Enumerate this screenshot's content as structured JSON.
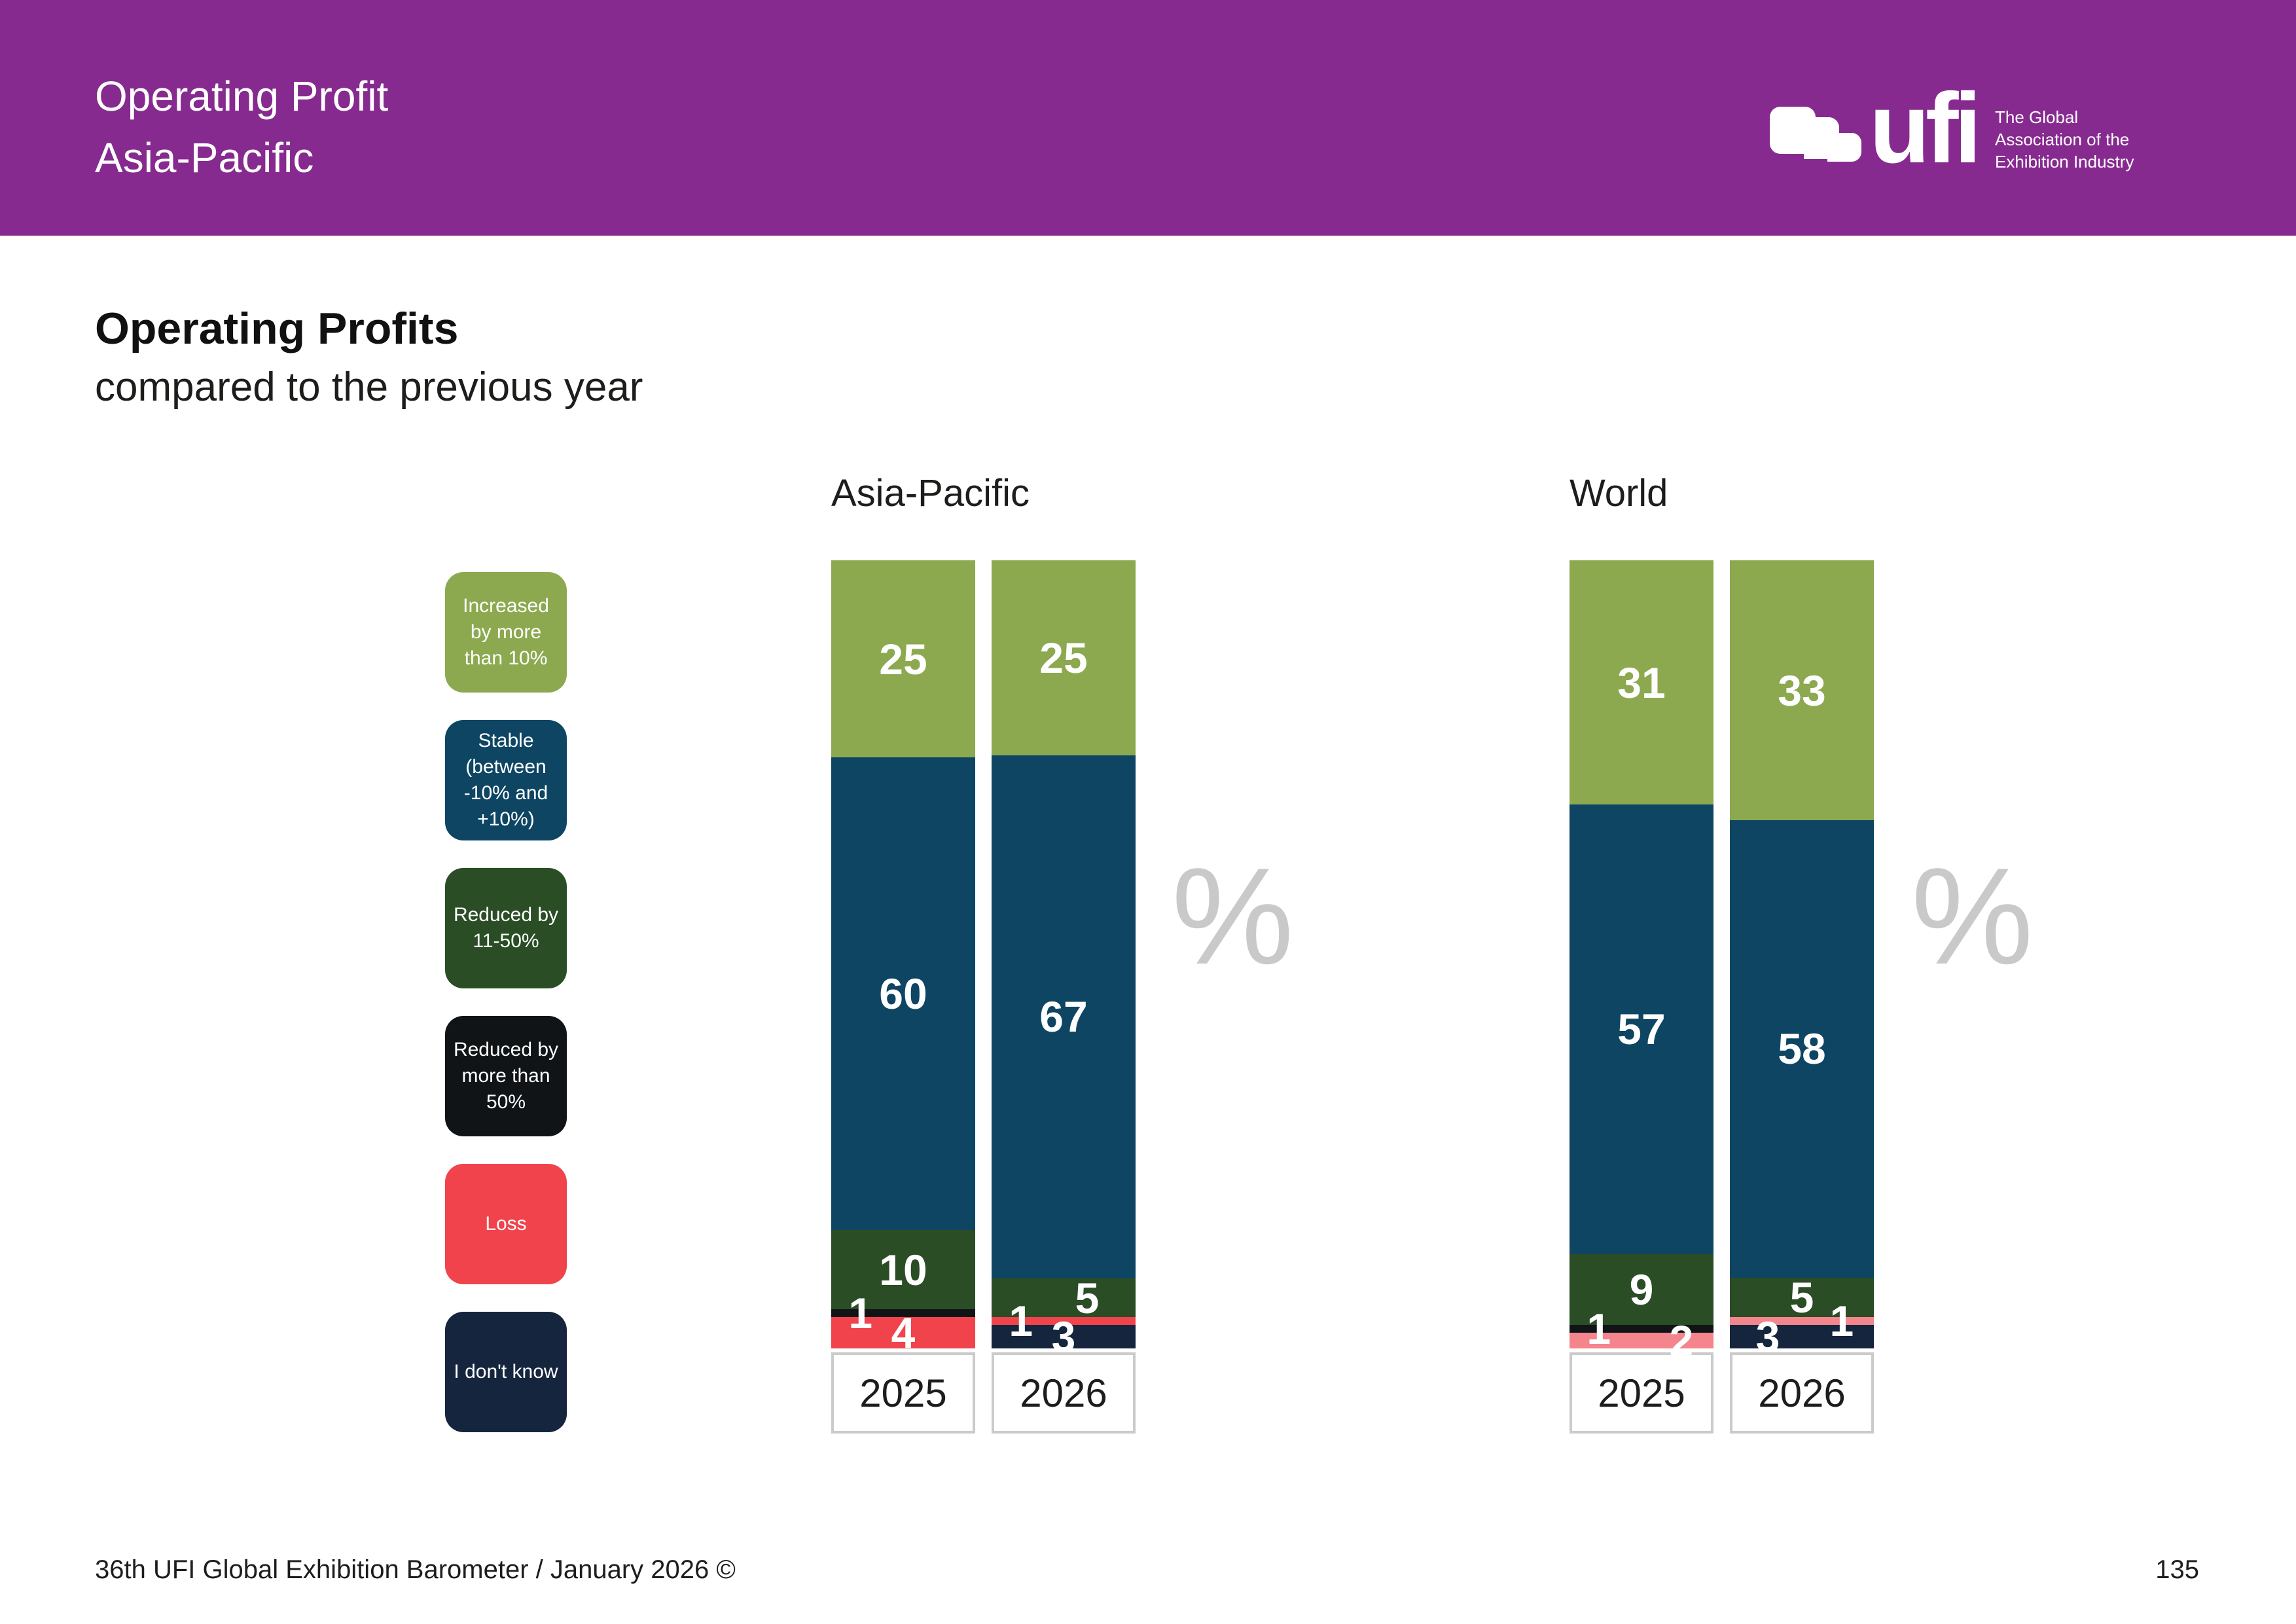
{
  "header": {
    "title_line1": "Operating Profit",
    "title_line2": "Asia-Pacific",
    "background": "#862A90",
    "logo": {
      "brand": "ufi",
      "tagline_lines": [
        "The Global",
        "Association of the",
        "Exhibition Industry"
      ]
    }
  },
  "main": {
    "title": "Operating Profits",
    "subtitle": "compared to the previous year"
  },
  "legend": {
    "items": [
      {
        "label": "Increased by more than 10%",
        "color": "#8CA94F"
      },
      {
        "label": "Stable (between -10% and +10%)",
        "color": "#0D4563"
      },
      {
        "label": "Reduced by 11-50%",
        "color": "#2A4D26"
      },
      {
        "label": "Reduced by more than 50%",
        "color": "#111417"
      },
      {
        "label": "Loss",
        "color": "#F0434B"
      },
      {
        "label": "I don't know",
        "color": "#15253E"
      }
    ]
  },
  "chart_data": {
    "type": "bar",
    "stacked": true,
    "unit": "%",
    "ymax": 100,
    "legend_position": "left",
    "charts": [
      {
        "title": "Asia-Pacific",
        "categories": [
          "2025",
          "2026"
        ],
        "bars": [
          {
            "year": "2025",
            "segments": [
              {
                "name": "Increased by more than 10%",
                "value": 25,
                "color": "#8CA94F",
                "label_pos": "center"
              },
              {
                "name": "Stable (between -10% and +10%)",
                "value": 60,
                "color": "#0D4563",
                "label_pos": "center"
              },
              {
                "name": "Reduced by 11-50%",
                "value": 10,
                "color": "#2A4D26",
                "label_pos": "center"
              },
              {
                "name": "Reduced by more than 50%",
                "value": 1,
                "color": "#111417",
                "label_pos": "left"
              },
              {
                "name": "Loss",
                "value": 4,
                "color": "#F0434B",
                "label_pos": "center"
              }
            ]
          },
          {
            "year": "2026",
            "segments": [
              {
                "name": "Increased by more than 10%",
                "value": 25,
                "color": "#8CA94F",
                "label_pos": "center"
              },
              {
                "name": "Stable (between -10% and +10%)",
                "value": 67,
                "color": "#0D4563",
                "label_pos": "center"
              },
              {
                "name": "Reduced by 11-50%",
                "value": 5,
                "color": "#2A4D26",
                "label_pos": "center-right"
              },
              {
                "name": "Loss",
                "value": 1,
                "color": "#F0434B",
                "label_pos": "left"
              },
              {
                "name": "I don't know",
                "value": 3,
                "color": "#15253E",
                "label_pos": "center"
              }
            ]
          }
        ]
      },
      {
        "title": "World",
        "categories": [
          "2025",
          "2026"
        ],
        "bars": [
          {
            "year": "2025",
            "segments": [
              {
                "name": "Increased by more than 10%",
                "value": 31,
                "color": "#8CA94F",
                "label_pos": "center"
              },
              {
                "name": "Stable (between -10% and +10%)",
                "value": 57,
                "color": "#0D4563",
                "label_pos": "center"
              },
              {
                "name": "Reduced by 11-50%",
                "value": 9,
                "color": "#2A4D26",
                "label_pos": "center"
              },
              {
                "name": "Reduced by more than 50%",
                "value": 1,
                "color": "#111417",
                "label_pos": "left"
              },
              {
                "name": "Loss",
                "value": 2,
                "color": "#F4858C",
                "label_pos": "right"
              }
            ]
          },
          {
            "year": "2026",
            "segments": [
              {
                "name": "Increased by more than 10%",
                "value": 33,
                "color": "#8CA94F",
                "label_pos": "center"
              },
              {
                "name": "Stable (between -10% and +10%)",
                "value": 58,
                "color": "#0D4563",
                "label_pos": "center"
              },
              {
                "name": "Reduced by 11-50%",
                "value": 5,
                "color": "#2A4D26",
                "label_pos": "center"
              },
              {
                "name": "Loss",
                "value": 1,
                "color": "#F4858C",
                "label_pos": "right"
              },
              {
                "name": "I don't know",
                "value": 3,
                "color": "#15253E",
                "label_pos": "center-left"
              }
            ]
          }
        ]
      }
    ]
  },
  "footer": {
    "source": "36th UFI Global Exhibition Barometer / January 2026 ©",
    "page_number": "135"
  }
}
